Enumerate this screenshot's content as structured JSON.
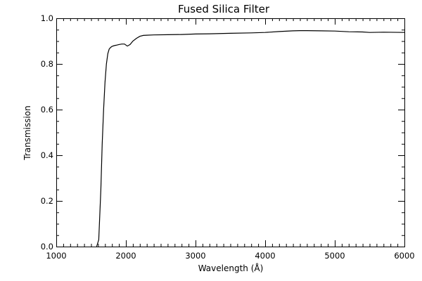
{
  "chart_data": {
    "type": "line",
    "title": "Fused Silica Filter",
    "xlabel": "Wavelength (Å)",
    "ylabel": "Transmission",
    "xlim": [
      1000,
      6000
    ],
    "ylim": [
      0.0,
      1.0
    ],
    "xticks": [
      1000,
      2000,
      3000,
      4000,
      5000,
      6000
    ],
    "xtick_labels": [
      "1000",
      "2000",
      "3000",
      "4000",
      "5000",
      "6000"
    ],
    "yticks": [
      0.0,
      0.2,
      0.4,
      0.6,
      0.8,
      1.0
    ],
    "ytick_labels": [
      "0.0",
      "0.2",
      "0.4",
      "0.6",
      "0.8",
      "1.0"
    ],
    "grid": false,
    "legend": "none",
    "line_color": "#000000",
    "series": [
      {
        "x": [
          1580,
          1610,
          1640,
          1660,
          1680,
          1700,
          1720,
          1740,
          1760,
          1780,
          1800,
          1830,
          1860,
          1900,
          1940,
          1980,
          2020,
          2060,
          2100,
          2150,
          2200,
          2250,
          2300,
          2400,
          2600,
          2800,
          3000,
          3200,
          3500,
          3800,
          4000,
          4200,
          4400,
          4500,
          4600,
          4800,
          5000,
          5200,
          5400,
          5500,
          5700,
          6000
        ],
        "y": [
          0.0,
          0.03,
          0.25,
          0.45,
          0.6,
          0.72,
          0.8,
          0.845,
          0.865,
          0.872,
          0.877,
          0.88,
          0.882,
          0.885,
          0.887,
          0.887,
          0.878,
          0.885,
          0.9,
          0.912,
          0.921,
          0.925,
          0.926,
          0.927,
          0.928,
          0.929,
          0.931,
          0.932,
          0.934,
          0.936,
          0.938,
          0.942,
          0.945,
          0.946,
          0.946,
          0.945,
          0.944,
          0.941,
          0.94,
          0.938,
          0.939,
          0.938
        ]
      }
    ]
  }
}
